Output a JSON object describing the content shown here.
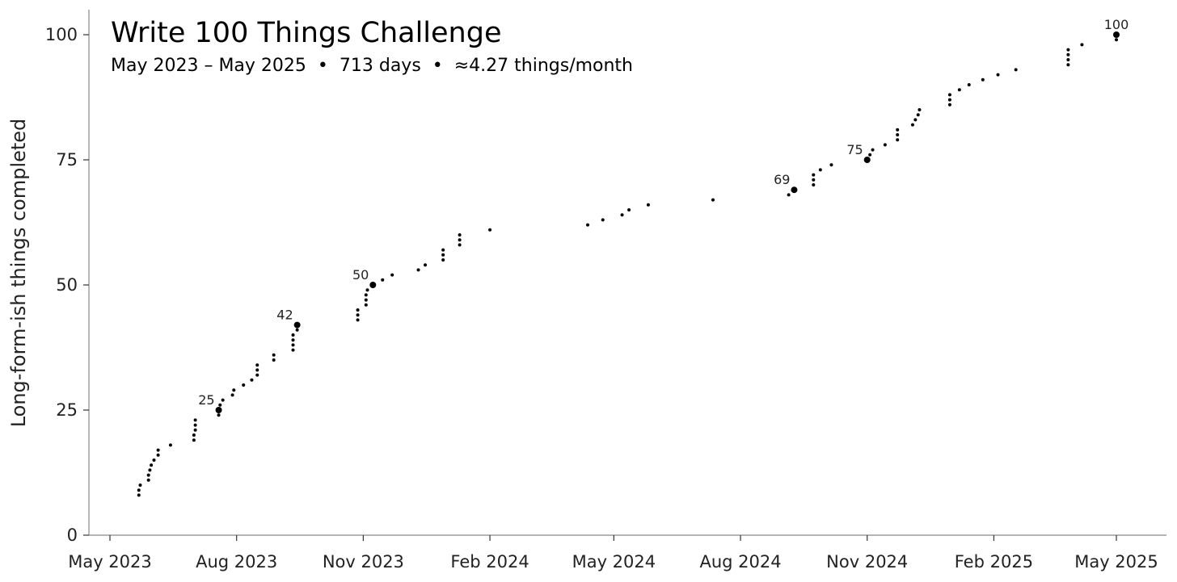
{
  "chart_data": {
    "type": "scatter",
    "title": "Write 100 Things Challenge",
    "subtitle": "May 2023 – May 2025  •  713 days  •  ≈4.27 things/month",
    "ylabel": "Long-form-ish things completed",
    "xlabel": "",
    "ylim": [
      0,
      105
    ],
    "xlim": [
      "2023-04-20",
      "2025-05-31"
    ],
    "y_ticks": [
      0,
      25,
      50,
      75,
      100
    ],
    "x_ticks": [
      {
        "date": "2023-05-01",
        "label": "May 2023"
      },
      {
        "date": "2023-08-01",
        "label": "Aug 2023"
      },
      {
        "date": "2023-11-01",
        "label": "Nov 2023"
      },
      {
        "date": "2024-02-01",
        "label": "Feb 2024"
      },
      {
        "date": "2024-05-01",
        "label": "May 2024"
      },
      {
        "date": "2024-08-01",
        "label": "Aug 2024"
      },
      {
        "date": "2024-11-01",
        "label": "Nov 2024"
      },
      {
        "date": "2025-02-01",
        "label": "Feb 2025"
      },
      {
        "date": "2025-05-01",
        "label": "May 2025"
      }
    ],
    "grid": false,
    "legend": "none",
    "point_color": "#000000",
    "milestones": [
      25,
      42,
      50,
      69,
      75,
      100
    ],
    "points": [
      {
        "x": "2023-05-22",
        "y": 8
      },
      {
        "x": "2023-05-22",
        "y": 9
      },
      {
        "x": "2023-05-23",
        "y": 10
      },
      {
        "x": "2023-05-29",
        "y": 11
      },
      {
        "x": "2023-05-29",
        "y": 12
      },
      {
        "x": "2023-05-30",
        "y": 13
      },
      {
        "x": "2023-05-31",
        "y": 14
      },
      {
        "x": "2023-06-02",
        "y": 15
      },
      {
        "x": "2023-06-05",
        "y": 16
      },
      {
        "x": "2023-06-05",
        "y": 17
      },
      {
        "x": "2023-06-14",
        "y": 18
      },
      {
        "x": "2023-07-01",
        "y": 19
      },
      {
        "x": "2023-07-01",
        "y": 20
      },
      {
        "x": "2023-07-02",
        "y": 21
      },
      {
        "x": "2023-07-02",
        "y": 22
      },
      {
        "x": "2023-07-02",
        "y": 23
      },
      {
        "x": "2023-07-19",
        "y": 24
      },
      {
        "x": "2023-07-19",
        "y": 25
      },
      {
        "x": "2023-07-20",
        "y": 26
      },
      {
        "x": "2023-07-22",
        "y": 27
      },
      {
        "x": "2023-07-29",
        "y": 28
      },
      {
        "x": "2023-07-30",
        "y": 29
      },
      {
        "x": "2023-08-06",
        "y": 30
      },
      {
        "x": "2023-08-12",
        "y": 31
      },
      {
        "x": "2023-08-16",
        "y": 32
      },
      {
        "x": "2023-08-16",
        "y": 33
      },
      {
        "x": "2023-08-16",
        "y": 34
      },
      {
        "x": "2023-08-28",
        "y": 35
      },
      {
        "x": "2023-08-28",
        "y": 36
      },
      {
        "x": "2023-09-11",
        "y": 37
      },
      {
        "x": "2023-09-11",
        "y": 38
      },
      {
        "x": "2023-09-11",
        "y": 39
      },
      {
        "x": "2023-09-11",
        "y": 40
      },
      {
        "x": "2023-09-14",
        "y": 41
      },
      {
        "x": "2023-09-14",
        "y": 42
      },
      {
        "x": "2023-10-28",
        "y": 43
      },
      {
        "x": "2023-10-28",
        "y": 44
      },
      {
        "x": "2023-10-28",
        "y": 45
      },
      {
        "x": "2023-11-03",
        "y": 46
      },
      {
        "x": "2023-11-03",
        "y": 47
      },
      {
        "x": "2023-11-03",
        "y": 48
      },
      {
        "x": "2023-11-04",
        "y": 49
      },
      {
        "x": "2023-11-08",
        "y": 50
      },
      {
        "x": "2023-11-15",
        "y": 51
      },
      {
        "x": "2023-11-22",
        "y": 52
      },
      {
        "x": "2023-12-11",
        "y": 53
      },
      {
        "x": "2023-12-16",
        "y": 54
      },
      {
        "x": "2023-12-29",
        "y": 55
      },
      {
        "x": "2023-12-29",
        "y": 56
      },
      {
        "x": "2023-12-29",
        "y": 57
      },
      {
        "x": "2024-01-10",
        "y": 58
      },
      {
        "x": "2024-01-10",
        "y": 59
      },
      {
        "x": "2024-01-10",
        "y": 60
      },
      {
        "x": "2024-02-01",
        "y": 61
      },
      {
        "x": "2024-04-12",
        "y": 62
      },
      {
        "x": "2024-04-23",
        "y": 63
      },
      {
        "x": "2024-05-07",
        "y": 64
      },
      {
        "x": "2024-05-12",
        "y": 65
      },
      {
        "x": "2024-05-26",
        "y": 66
      },
      {
        "x": "2024-07-12",
        "y": 67
      },
      {
        "x": "2024-09-05",
        "y": 68
      },
      {
        "x": "2024-09-09",
        "y": 69
      },
      {
        "x": "2024-09-23",
        "y": 70
      },
      {
        "x": "2024-09-23",
        "y": 71
      },
      {
        "x": "2024-09-23",
        "y": 72
      },
      {
        "x": "2024-09-28",
        "y": 73
      },
      {
        "x": "2024-10-06",
        "y": 74
      },
      {
        "x": "2024-11-01",
        "y": 75
      },
      {
        "x": "2024-11-03",
        "y": 76
      },
      {
        "x": "2024-11-05",
        "y": 77
      },
      {
        "x": "2024-11-14",
        "y": 78
      },
      {
        "x": "2024-11-23",
        "y": 79
      },
      {
        "x": "2024-11-23",
        "y": 80
      },
      {
        "x": "2024-11-23",
        "y": 81
      },
      {
        "x": "2024-12-04",
        "y": 82
      },
      {
        "x": "2024-12-06",
        "y": 83
      },
      {
        "x": "2024-12-08",
        "y": 84
      },
      {
        "x": "2024-12-09",
        "y": 85
      },
      {
        "x": "2024-12-31",
        "y": 86
      },
      {
        "x": "2024-12-31",
        "y": 87
      },
      {
        "x": "2024-12-31",
        "y": 88
      },
      {
        "x": "2025-01-07",
        "y": 89
      },
      {
        "x": "2025-01-14",
        "y": 90
      },
      {
        "x": "2025-01-24",
        "y": 91
      },
      {
        "x": "2025-02-04",
        "y": 92
      },
      {
        "x": "2025-02-17",
        "y": 93
      },
      {
        "x": "2025-03-27",
        "y": 94
      },
      {
        "x": "2025-03-27",
        "y": 95
      },
      {
        "x": "2025-03-27",
        "y": 96
      },
      {
        "x": "2025-03-27",
        "y": 97
      },
      {
        "x": "2025-04-06",
        "y": 98
      },
      {
        "x": "2025-05-01",
        "y": 99
      },
      {
        "x": "2025-05-01",
        "y": 100
      }
    ]
  }
}
